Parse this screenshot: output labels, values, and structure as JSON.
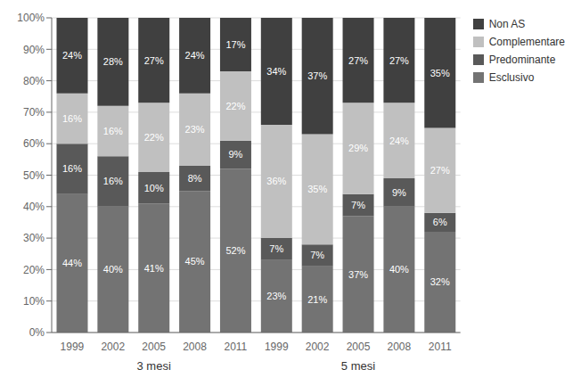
{
  "chart_data": {
    "type": "bar",
    "stacked": true,
    "data_labels": true,
    "grid": true,
    "legend": "upper right",
    "categories": [
      "1999",
      "2002",
      "2005",
      "2008",
      "2011",
      "1999",
      "2002",
      "2005",
      "2008",
      "2011"
    ],
    "group_labels": [
      "3 mesi",
      "5 mesi"
    ],
    "series": [
      {
        "name": "Esclusivo",
        "color": "#737373",
        "values": [
          44,
          40,
          41,
          45,
          52,
          23,
          21,
          37,
          40,
          32
        ],
        "value_labels": [
          "44%",
          "40%",
          "41%",
          "45%",
          "52%",
          "23%",
          "21%",
          "37%",
          "40%",
          "32%"
        ]
      },
      {
        "name": "Predominante",
        "color": "#595959",
        "values": [
          16,
          16,
          10,
          8,
          9,
          7,
          7,
          7,
          9,
          6
        ],
        "value_labels": [
          "16%",
          "16%",
          "10%",
          "8%",
          "9%",
          "7%",
          "7%",
          "7%",
          "9%",
          "6%"
        ]
      },
      {
        "name": "Complementare",
        "color": "#c0c0c0",
        "values": [
          16,
          16,
          22,
          23,
          22,
          36,
          35,
          29,
          24,
          27
        ],
        "value_labels": [
          "16%",
          "16%",
          "22%",
          "23%",
          "22%",
          "36%",
          "35%",
          "29%",
          "24%",
          "27%"
        ]
      },
      {
        "name": "Non AS",
        "color": "#404040",
        "values": [
          24,
          28,
          27,
          24,
          17,
          34,
          37,
          27,
          27,
          35
        ],
        "value_labels": [
          "24%",
          "28%",
          "27%",
          "24%",
          "17%",
          "34%",
          "37%",
          "27%",
          "27%",
          "35%"
        ]
      }
    ],
    "ylim": [
      0,
      100
    ],
    "yticks": [
      {
        "value": 0,
        "label": "0%"
      },
      {
        "value": 10,
        "label": "10%"
      },
      {
        "value": 20,
        "label": "20%"
      },
      {
        "value": 30,
        "label": "30%"
      },
      {
        "value": 40,
        "label": "40%"
      },
      {
        "value": 50,
        "label": "50%"
      },
      {
        "value": 60,
        "label": "60%"
      },
      {
        "value": 70,
        "label": "70%"
      },
      {
        "value": 80,
        "label": "80%"
      },
      {
        "value": 90,
        "label": "90%"
      },
      {
        "value": 100,
        "label": "100%"
      }
    ]
  }
}
